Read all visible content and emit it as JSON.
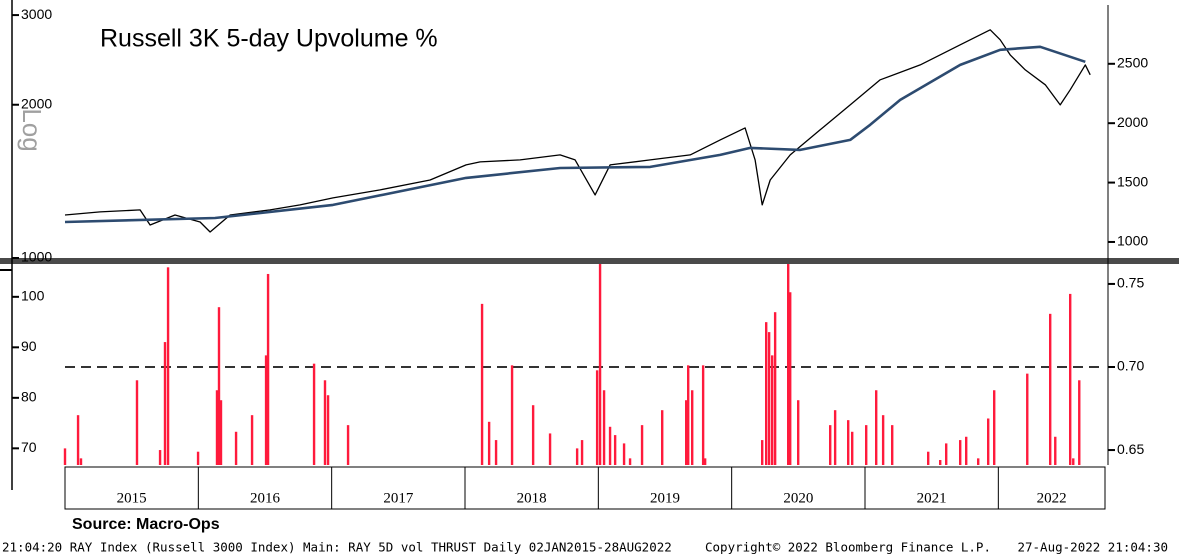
{
  "chart_data": [
    {
      "type": "line",
      "title": "Russell 3K 5-day Upvolume %",
      "ylabel": "Log",
      "log_scale": true,
      "xlim": [
        2015,
        2022.8
      ],
      "ylim": [
        1000,
        3140
      ],
      "yticks": [
        1000,
        2000,
        3000
      ],
      "y2lim": [
        865,
        2995
      ],
      "y2ticks": [
        1000,
        1500,
        2000,
        2500
      ],
      "series": [
        {
          "color": "#000000",
          "axis": "y2",
          "x": [
            2015.0,
            2015.263,
            2015.563,
            2015.638,
            2015.825,
            2016.013,
            2016.088,
            2016.238,
            2016.538,
            2016.763,
            2017.01,
            2017.363,
            2017.738,
            2018.008,
            2018.113,
            2018.413,
            2018.713,
            2018.826,
            2018.976,
            2019.088,
            2019.389,
            2019.689,
            2019.914,
            2020.101,
            2020.176,
            2020.229,
            2020.289,
            2020.439,
            2020.664,
            2020.889,
            2021.114,
            2021.414,
            2021.714,
            2021.939,
            2022.014,
            2022.089,
            2022.202,
            2022.352,
            2022.464,
            2022.539,
            2022.652,
            2022.689
          ],
          "values": [
            1227,
            1253,
            1270,
            1143,
            1227,
            1168,
            1084,
            1227,
            1270,
            1312,
            1371,
            1438,
            1522,
            1649,
            1674,
            1691,
            1733,
            1691,
            1396,
            1649,
            1691,
            1733,
            1859,
            1960,
            1691,
            1312,
            1522,
            1733,
            1944,
            2154,
            2365,
            2491,
            2660,
            2786,
            2702,
            2575,
            2449,
            2323,
            2154,
            2281,
            2491,
            2407
          ]
        },
        {
          "color": "#2d4b70",
          "axis": "y2",
          "x": [
            2015.0,
            2016.125,
            2017.01,
            2018.008,
            2018.713,
            2019.389,
            2019.914,
            2020.139,
            2020.514,
            2020.889,
            2021.039,
            2021.264,
            2021.714,
            2022.014,
            2022.314,
            2022.652
          ],
          "values": [
            1168,
            1202,
            1312,
            1539,
            1623,
            1632,
            1733,
            1792,
            1775,
            1859,
            1986,
            2196,
            2491,
            2618,
            2643,
            2517
          ]
        }
      ]
    },
    {
      "type": "bar",
      "xlim": [
        2015,
        2022.8
      ],
      "xticks": [
        2015,
        2016,
        2017,
        2018,
        2019,
        2020,
        2021,
        2022
      ],
      "ylim": [
        66.7,
        106.5
      ],
      "yticks": [
        70,
        80,
        90,
        100
      ],
      "y2lim": [
        0.641,
        0.762
      ],
      "y2ticks": [
        0.65,
        {
          "value": 0.7,
          "label": "0.70"
        },
        0.75
      ],
      "threshold": 0.7,
      "series": [
        {
          "color": "#ff1a3c",
          "axis": "y2",
          "x": [
            2015.0,
            2015.098,
            2015.12,
            2015.54,
            2015.713,
            2015.75,
            2015.773,
            2015.998,
            2016.14,
            2016.155,
            2016.17,
            2016.283,
            2016.403,
            2016.508,
            2016.523,
            2016.868,
            2016.95,
            2016.973,
            2017.123,
            2018.128,
            2018.181,
            2018.233,
            2018.353,
            2018.511,
            2018.638,
            2018.841,
            2018.878,
            2018.991,
            2019.013,
            2019.043,
            2019.088,
            2019.126,
            2019.193,
            2019.238,
            2019.328,
            2019.479,
            2019.659,
            2019.674,
            2019.704,
            2019.786,
            2019.801,
            2020.229,
            2020.259,
            2020.281,
            2020.304,
            2020.326,
            2020.424,
            2020.439,
            2020.499,
            2020.739,
            2020.776,
            2020.874,
            2020.904,
            2021.009,
            2021.084,
            2021.136,
            2021.204,
            2021.474,
            2021.564,
            2021.609,
            2021.714,
            2021.759,
            2021.849,
            2021.924,
            2021.969,
            2022.217,
            2022.389,
            2022.427,
            2022.539,
            2022.562,
            2022.607
          ],
          "values": [
            0.651,
            0.671,
            0.645,
            0.692,
            0.65,
            0.715,
            0.76,
            0.649,
            0.686,
            0.736,
            0.68,
            0.661,
            0.671,
            0.707,
            0.756,
            0.702,
            0.692,
            0.683,
            0.665,
            0.738,
            0.667,
            0.656,
            0.701,
            0.677,
            0.66,
            0.651,
            0.656,
            0.698,
            0.762,
            0.686,
            0.664,
            0.659,
            0.654,
            0.645,
            0.665,
            0.674,
            0.68,
            0.701,
            0.686,
            0.701,
            0.645,
            0.656,
            0.727,
            0.721,
            0.707,
            0.733,
            0.762,
            0.745,
            0.68,
            0.665,
            0.674,
            0.668,
            0.661,
            0.665,
            0.686,
            0.671,
            0.665,
            0.649,
            0.644,
            0.654,
            0.656,
            0.658,
            0.645,
            0.669,
            0.686,
            0.696,
            0.732,
            0.658,
            0.744,
            0.645,
            0.692
          ]
        }
      ]
    }
  ],
  "source": "Source: Macro-Ops",
  "footer": [
    "21:04:20 RAY Index (Russell 3000 Index) Main: RAY 5D vol THRUST  Daily 02JAN2015-28AUG2022",
    "Copyright© 2022 Bloomberg Finance L.P.",
    "27-Aug-2022 21:04:30"
  ]
}
